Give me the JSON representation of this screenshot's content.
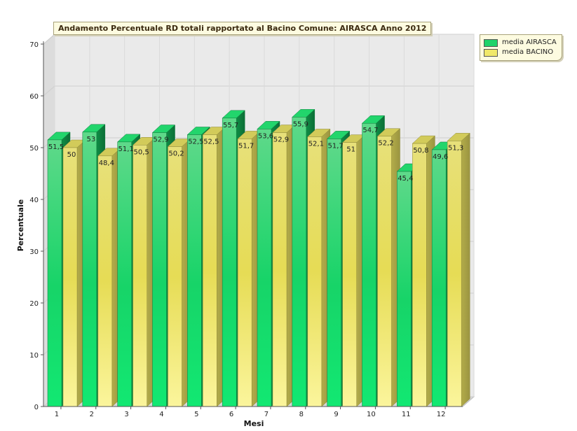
{
  "chart_data": {
    "type": "bar",
    "title": "Andamento Percentuale RD totali rapportato al Bacino Comune: AIRASCA Anno 2012",
    "xlabel": "Mesi",
    "ylabel": "Percentuale",
    "ylim": [
      0,
      70
    ],
    "yticks": [
      "0",
      "10",
      "20",
      "30",
      "40",
      "50",
      "60",
      "70"
    ],
    "categories": [
      "1",
      "2",
      "3",
      "4",
      "5",
      "6",
      "7",
      "8",
      "9",
      "10",
      "11",
      "12"
    ],
    "series": [
      {
        "name": "media AIRASCA",
        "values": [
          51.5,
          53,
          51.1,
          52.9,
          52.5,
          55.7,
          53.6,
          55.9,
          51.7,
          54.7,
          45.4,
          49.6
        ],
        "labels": [
          "51,5",
          "53",
          "51,1",
          "52,9",
          "52,5",
          "55,7",
          "53,6",
          "55,9",
          "51,7",
          "54,7",
          "45,4",
          "49,6"
        ],
        "color": "#1fd36a"
      },
      {
        "name": "media BACINO",
        "values": [
          50,
          48.4,
          50.5,
          50.2,
          52.5,
          51.7,
          52.9,
          52.1,
          51,
          52.2,
          50.8,
          51.3
        ],
        "labels": [
          "50",
          "48,4",
          "50,5",
          "50,2",
          "52,5",
          "51,7",
          "52,9",
          "52,1",
          "51",
          "52,2",
          "50,8",
          "51,3"
        ],
        "color": "#f0e86a"
      }
    ],
    "grid": true,
    "legend_position": "top-right"
  }
}
